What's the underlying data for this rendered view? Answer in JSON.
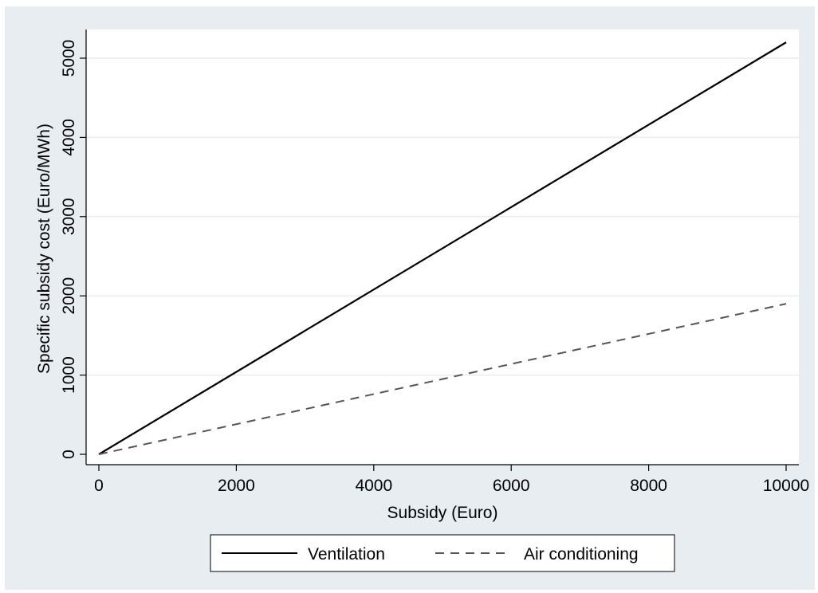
{
  "chart_data": {
    "type": "line",
    "xlabel": "Subsidy (Euro)",
    "ylabel": "Specific subsidy cost (Euro/MWh)",
    "xlim": [
      0,
      10000
    ],
    "ylim": [
      0,
      5200
    ],
    "x_ticks": [
      0,
      2000,
      4000,
      6000,
      8000,
      10000
    ],
    "y_ticks": [
      0,
      1000,
      2000,
      3000,
      4000,
      5000
    ],
    "grid": "horizontal",
    "legend_position": "bottom",
    "series": [
      {
        "name": "Ventilation",
        "style": "solid",
        "color": "#000000",
        "x": [
          0,
          10000
        ],
        "y": [
          0,
          5200
        ]
      },
      {
        "name": "Air conditioning",
        "style": "dashed",
        "color": "#555555",
        "x": [
          0,
          10000
        ],
        "y": [
          0,
          1900
        ]
      }
    ]
  },
  "colors": {
    "outer_background": "#e8edf2",
    "plot_background": "#ffffff",
    "gridline": "#e6ecf1"
  }
}
